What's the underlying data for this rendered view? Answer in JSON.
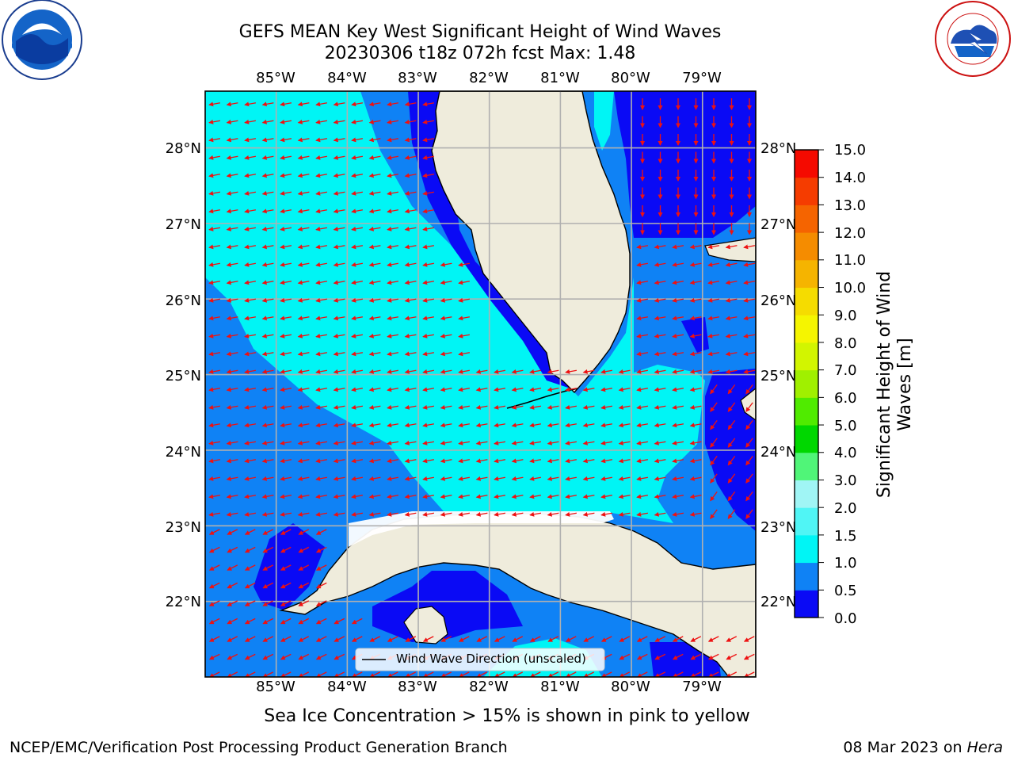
{
  "title_line1": "GEFS MEAN Key West Significant Height of Wind Waves",
  "title_line2": "20230306 t18z 072h fcst   Max: 1.48",
  "caption": "Sea Ice Concentration > 15% is shown in pink to yellow",
  "footer_left": "NCEP/EMC/Verification Post Processing Product Generation Branch",
  "footer_right_date": "08 Mar 2023 on ",
  "footer_right_host": "Hera",
  "legend_label": "Wind Wave Direction (unscaled)",
  "lon_ticks": [
    "85°W",
    "84°W",
    "83°W",
    "82°W",
    "81°W",
    "80°W",
    "79°W"
  ],
  "lat_ticks": [
    "28°N",
    "27°N",
    "26°N",
    "25°N",
    "24°N",
    "23°N",
    "22°N"
  ],
  "colorbar": {
    "label_line1": "Significant Height of Wind",
    "label_line2": "Waves [m]",
    "ticks": [
      "15.0",
      "14.0",
      "13.0",
      "12.0",
      "11.0",
      "10.0",
      "9.0",
      "8.0",
      "7.0",
      "6.0",
      "5.0",
      "4.0",
      "3.0",
      "2.0",
      "1.5",
      "1.0",
      "0.5",
      "0.0"
    ],
    "levels": [
      0,
      0.5,
      1.0,
      1.5,
      2.0,
      3.0,
      4.0,
      5.0,
      6.0,
      7.0,
      8.0,
      9.0,
      10.0,
      11.0,
      12.0,
      13.0,
      14.0,
      15.0
    ],
    "colors": [
      "#0a0af5",
      "#0f82f5",
      "#00f5f5",
      "#50f5f5",
      "#a0f5f5",
      "#50f578",
      "#00d700",
      "#50eb00",
      "#a0f000",
      "#d2f500",
      "#f5f500",
      "#f5dc00",
      "#f5b400",
      "#f58c00",
      "#f56400",
      "#f53c00",
      "#f50a00"
    ]
  },
  "map": {
    "lon_range": [
      -86.0,
      -78.25
    ],
    "lat_range": [
      21.0,
      28.75
    ],
    "land_color": "#efecdc",
    "grid_color": "#b0b0b0",
    "arrow_color": "#ee1111",
    "max_wave_height_m": 1.48
  },
  "logos": {
    "noaa": "NOAA",
    "nws": "NATIONAL WEATHER SERVICE"
  }
}
